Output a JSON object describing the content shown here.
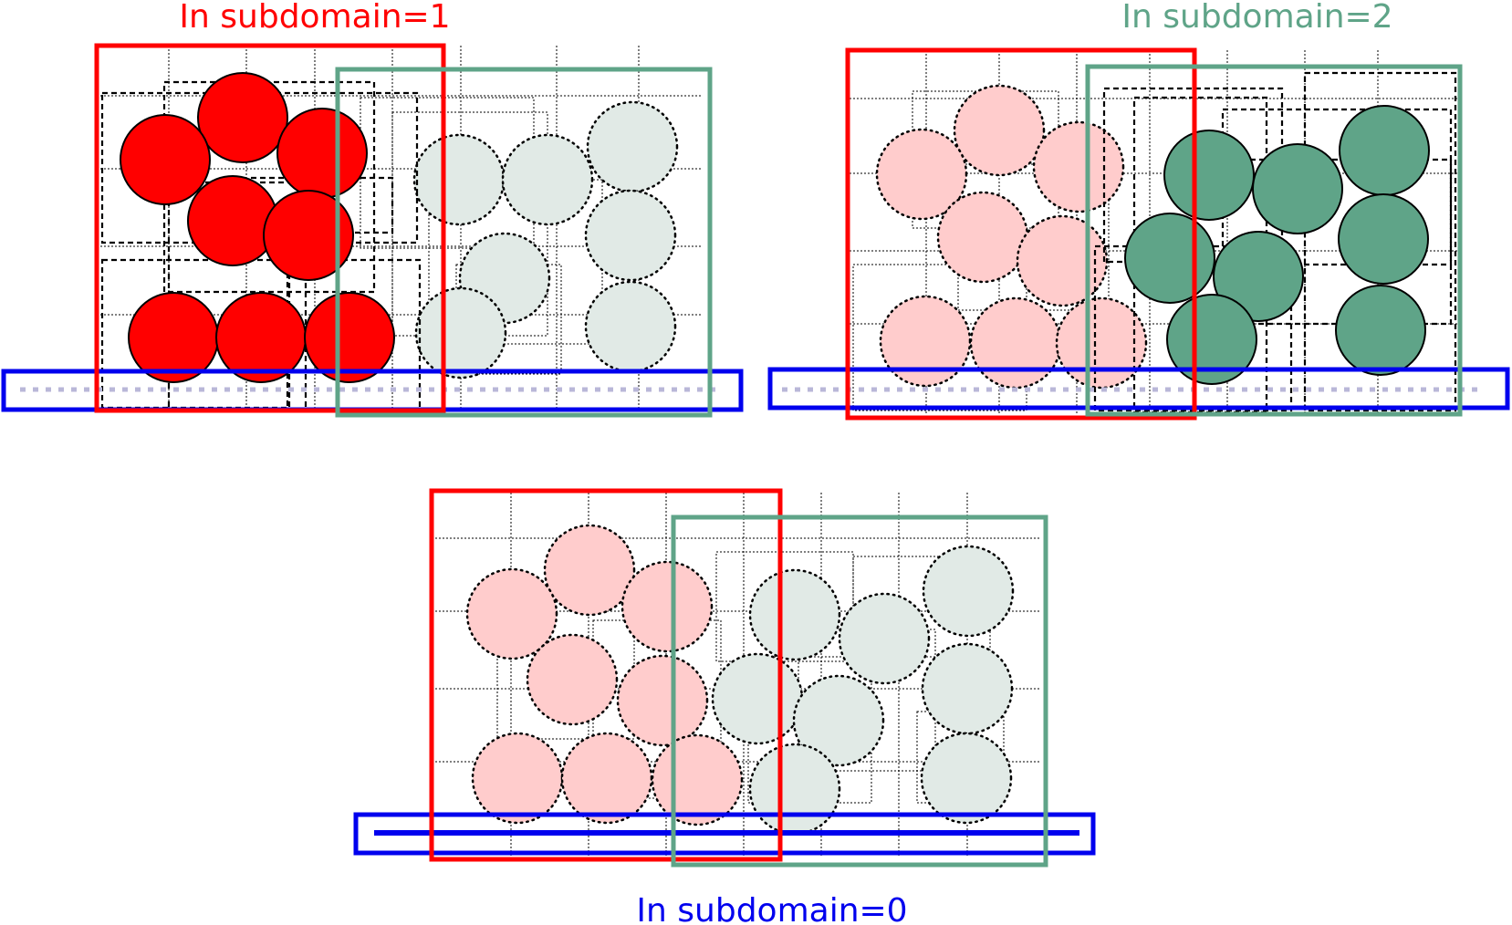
{
  "labels": {
    "panel_1": "In subdomain=1",
    "panel_2": "In subdomain=2",
    "panel_0": "In subdomain=0"
  },
  "colors": {
    "red": "#ff0000",
    "red_faded": "#ffcccc",
    "green": "#5fa488",
    "green_faded": "#e1eae6",
    "blue": "#0000ee",
    "blue_dotted": "#b9b7d8",
    "outline": "#000000"
  },
  "panels": [
    {
      "id": "panel-subdomain-1",
      "highlight": "red",
      "highlight_label": "panel_1",
      "boundary": "dotted"
    },
    {
      "id": "panel-subdomain-2",
      "highlight": "green",
      "highlight_label": "panel_2",
      "boundary": "dotted"
    },
    {
      "id": "panel-subdomain-0",
      "highlight": "blue",
      "highlight_label": "panel_0",
      "boundary": "solid"
    }
  ]
}
